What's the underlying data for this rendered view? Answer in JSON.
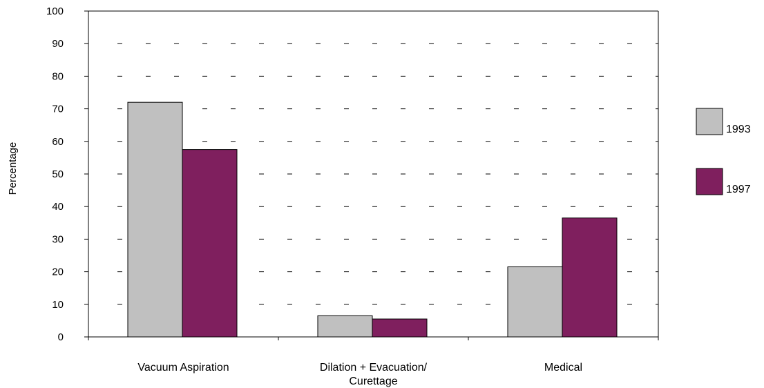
{
  "chart_data": {
    "type": "bar",
    "title": "",
    "xlabel": "",
    "ylabel": "Percentage",
    "ylim": [
      0,
      100
    ],
    "yticks": [
      0,
      10,
      20,
      30,
      40,
      50,
      60,
      70,
      80,
      90,
      100
    ],
    "grid": true,
    "legend_position": "right",
    "categories": [
      [
        "Vacuum Aspiration"
      ],
      [
        "Dilation + Evacuation/",
        "Curettage"
      ],
      [
        "Medical"
      ]
    ],
    "series": [
      {
        "name": "1993",
        "color": "#c0c0c0",
        "values": [
          72,
          6.5,
          21.5
        ]
      },
      {
        "name": "1997",
        "color": "#7f1f5e",
        "values": [
          57.5,
          5.5,
          36.5
        ]
      }
    ]
  }
}
